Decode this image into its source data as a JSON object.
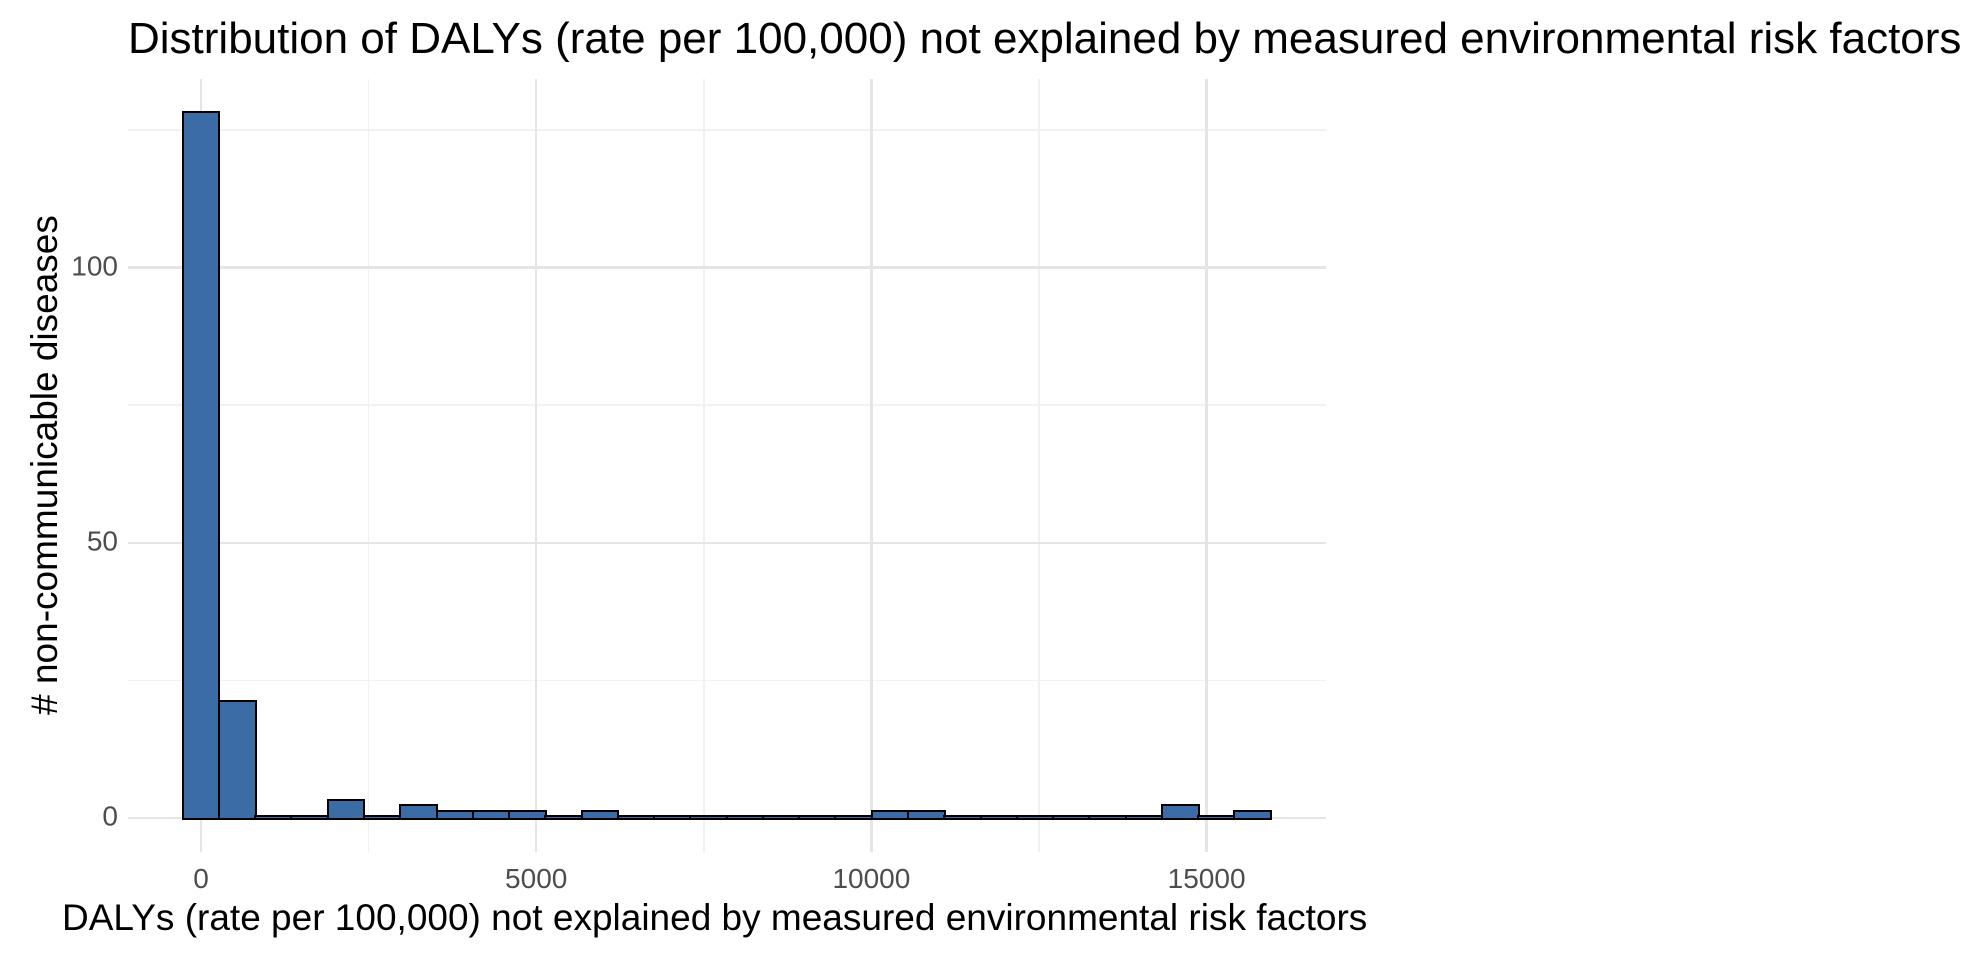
{
  "chart": {
    "title": "Distribution of DALYs (rate per 100,000) not explained by measured environmental risk factors",
    "xlabel": "DALYs (rate per 100,000) not explained by measured environmental risk factors",
    "ylabel": "# non-communicable diseases"
  },
  "chart_data": {
    "type": "bar",
    "subtype": "histogram",
    "title": "Distribution of DALYs (rate per 100,000) not explained by measured environmental risk factors",
    "xlabel": "DALYs (rate per 100,000) not explained by measured environmental risk factors",
    "ylabel": "# non-communicable diseases",
    "binwidth": 541,
    "bin_centers": [
      0,
      541,
      1082,
      1623,
      2164,
      2705,
      3246,
      3787,
      4328,
      4869,
      5410,
      5951,
      6492,
      7033,
      7574,
      8115,
      8656,
      9197,
      9738,
      10279,
      10820,
      11361,
      11902,
      12443,
      12984,
      13525,
      14066,
      14607,
      15148,
      15689
    ],
    "counts": [
      128,
      21,
      0,
      0,
      3,
      0,
      2,
      1,
      1,
      1,
      0,
      1,
      0,
      0,
      0,
      0,
      0,
      0,
      0,
      1,
      1,
      0,
      0,
      0,
      0,
      0,
      0,
      2,
      0,
      1
    ],
    "x_ticks": [
      0,
      5000,
      10000,
      15000
    ],
    "x_minor_ticks": [
      2500,
      7500,
      12500
    ],
    "y_ticks": [
      0,
      50,
      100
    ],
    "y_minor_ticks": [
      25,
      75,
      125
    ],
    "xlim": [
      -1089,
      16781
    ],
    "ylim": [
      -6.2,
      134.3
    ],
    "grid": true,
    "legend_position": "none",
    "colors": {
      "bar_fill": "#3C6CA6",
      "bar_stroke": "#000000",
      "grid_major": "#e5e5e5",
      "grid_minor": "#f1f1f1",
      "tick_label": "#4d4d4d",
      "text": "#000000",
      "background": "#ffffff"
    }
  }
}
